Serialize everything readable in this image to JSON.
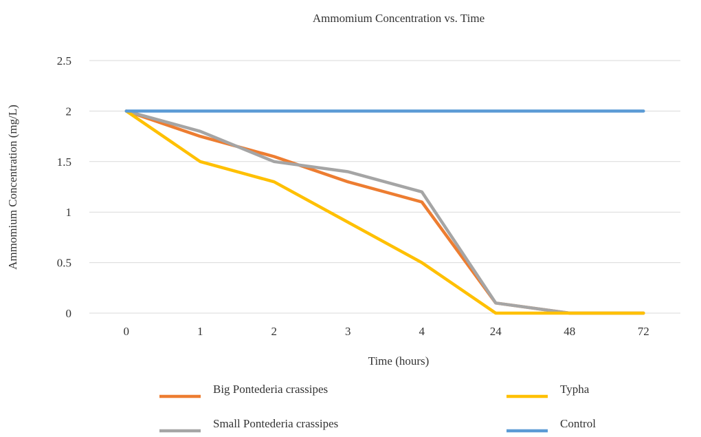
{
  "chart_data": {
    "type": "line",
    "title": "Ammomium Concentration vs. Time",
    "xlabel": "Time (hours)",
    "ylabel": "Ammomium Concentration (mg/L)",
    "categories": [
      "0",
      "1",
      "2",
      "3",
      "4",
      "24",
      "48",
      "72"
    ],
    "y_ticks": [
      "0",
      "0.5",
      "1",
      "1.5",
      "2",
      "2.5"
    ],
    "ylim": [
      0,
      2.5
    ],
    "grid": true,
    "legend_position": "bottom",
    "series": [
      {
        "name": "Big Pontederia crassipes",
        "color": "#ED7D31",
        "values": [
          2.0,
          1.75,
          1.55,
          1.3,
          1.1,
          0.1,
          0.0,
          0.0
        ]
      },
      {
        "name": "Small Pontederia crassipes",
        "color": "#A5A5A5",
        "values": [
          2.0,
          1.8,
          1.5,
          1.4,
          1.2,
          0.1,
          0.0,
          0.0
        ]
      },
      {
        "name": "Typha",
        "color": "#FFC000",
        "values": [
          2.0,
          1.5,
          1.3,
          0.9,
          0.5,
          0.0,
          0.0,
          0.0
        ]
      },
      {
        "name": "Control",
        "color": "#5B9BD5",
        "values": [
          2.0,
          2.0,
          2.0,
          2.0,
          2.0,
          2.0,
          2.0,
          2.0
        ]
      }
    ]
  }
}
